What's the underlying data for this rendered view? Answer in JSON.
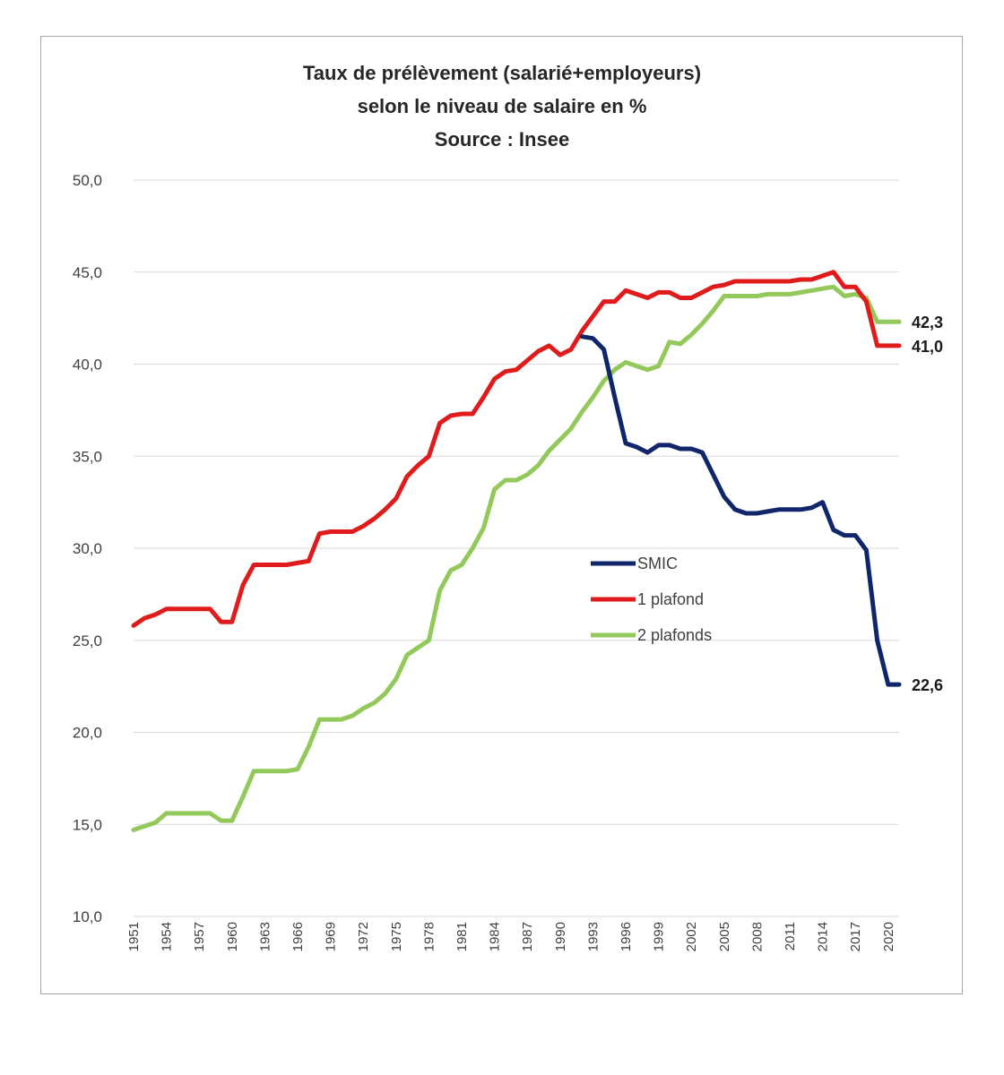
{
  "chart_data": {
    "type": "line",
    "title": [
      "Taux de prélèvement (salarié+employeurs)",
      "selon le niveau de salaire en %",
      "Source : Insee"
    ],
    "xlabel": "",
    "ylabel": "",
    "ylim": [
      10,
      50
    ],
    "yticks": [
      "10,0",
      "15,0",
      "20,0",
      "25,0",
      "30,0",
      "35,0",
      "40,0",
      "45,0",
      "50,0"
    ],
    "ytick_values": [
      10,
      15,
      20,
      25,
      30,
      35,
      40,
      45,
      50
    ],
    "xlim": [
      1951,
      2021
    ],
    "xticks": [
      "1951",
      "1954",
      "1957",
      "1960",
      "1963",
      "1966",
      "1969",
      "1972",
      "1975",
      "1978",
      "1981",
      "1984",
      "1987",
      "1990",
      "1993",
      "1996",
      "1999",
      "2002",
      "2005",
      "2008",
      "2011",
      "2014",
      "2017",
      "2020"
    ],
    "xtick_values": [
      1951,
      1954,
      1957,
      1960,
      1963,
      1966,
      1969,
      1972,
      1975,
      1978,
      1981,
      1984,
      1987,
      1990,
      1993,
      1996,
      1999,
      2002,
      2005,
      2008,
      2011,
      2014,
      2017,
      2020
    ],
    "grid": "horizontal",
    "legend_position": "center-right",
    "series": [
      {
        "name": "SMIC",
        "color": "#10266b",
        "x": [
          1992,
          1993,
          1994,
          1995,
          1996,
          1997,
          1998,
          1999,
          2000,
          2001,
          2002,
          2003,
          2004,
          2005,
          2006,
          2007,
          2008,
          2009,
          2010,
          2011,
          2012,
          2013,
          2014,
          2015,
          2016,
          2017,
          2018,
          2019,
          2020,
          2021
        ],
        "y": [
          41.5,
          41.4,
          40.8,
          38.2,
          35.7,
          35.5,
          35.2,
          35.6,
          35.6,
          35.4,
          35.4,
          35.2,
          34.0,
          32.8,
          32.1,
          31.9,
          31.9,
          32.0,
          32.1,
          32.1,
          32.1,
          32.2,
          32.5,
          31.0,
          30.7,
          30.7,
          29.9,
          25.0,
          22.6,
          22.6
        ],
        "end_label": "22,6"
      },
      {
        "name": "1 plafond",
        "color": "#e01b1b",
        "x": [
          1951,
          1952,
          1953,
          1954,
          1955,
          1956,
          1957,
          1958,
          1959,
          1960,
          1961,
          1962,
          1963,
          1964,
          1965,
          1966,
          1967,
          1968,
          1969,
          1970,
          1971,
          1972,
          1973,
          1974,
          1975,
          1976,
          1977,
          1978,
          1979,
          1980,
          1981,
          1982,
          1983,
          1984,
          1985,
          1986,
          1987,
          1988,
          1989,
          1990,
          1991,
          1992,
          1993,
          1994,
          1995,
          1996,
          1997,
          1998,
          1999,
          2000,
          2001,
          2002,
          2003,
          2004,
          2005,
          2006,
          2007,
          2008,
          2009,
          2010,
          2011,
          2012,
          2013,
          2014,
          2015,
          2016,
          2017,
          2018,
          2019,
          2020,
          2021
        ],
        "y": [
          25.8,
          26.2,
          26.4,
          26.7,
          26.7,
          26.7,
          26.7,
          26.7,
          26.0,
          26.0,
          28.0,
          29.1,
          29.1,
          29.1,
          29.1,
          29.2,
          29.3,
          30.8,
          30.9,
          30.9,
          30.9,
          31.2,
          31.6,
          32.1,
          32.7,
          33.9,
          34.5,
          35.0,
          36.8,
          37.2,
          37.3,
          37.3,
          38.2,
          39.2,
          39.6,
          39.7,
          40.2,
          40.7,
          41.0,
          40.5,
          40.8,
          41.8,
          42.6,
          43.4,
          43.4,
          44.0,
          43.8,
          43.6,
          43.9,
          43.9,
          43.6,
          43.6,
          43.9,
          44.2,
          44.3,
          44.5,
          44.5,
          44.5,
          44.5,
          44.5,
          44.5,
          44.6,
          44.6,
          44.8,
          45.0,
          44.2,
          44.2,
          43.4,
          41.0,
          41.0,
          41.0
        ],
        "end_label": "41,0"
      },
      {
        "name": "2 plafonds",
        "color": "#92c95a",
        "x": [
          1951,
          1952,
          1953,
          1954,
          1955,
          1956,
          1957,
          1958,
          1959,
          1960,
          1961,
          1962,
          1963,
          1964,
          1965,
          1966,
          1967,
          1968,
          1969,
          1970,
          1971,
          1972,
          1973,
          1974,
          1975,
          1976,
          1977,
          1978,
          1979,
          1980,
          1981,
          1982,
          1983,
          1984,
          1985,
          1986,
          1987,
          1988,
          1989,
          1990,
          1991,
          1992,
          1993,
          1994,
          1995,
          1996,
          1997,
          1998,
          1999,
          2000,
          2001,
          2002,
          2003,
          2004,
          2005,
          2006,
          2007,
          2008,
          2009,
          2010,
          2011,
          2012,
          2013,
          2014,
          2015,
          2016,
          2017,
          2018,
          2019,
          2020,
          2021
        ],
        "y": [
          14.7,
          14.9,
          15.1,
          15.6,
          15.6,
          15.6,
          15.6,
          15.6,
          15.2,
          15.2,
          16.5,
          17.9,
          17.9,
          17.9,
          17.9,
          18.0,
          19.2,
          20.7,
          20.7,
          20.7,
          20.9,
          21.3,
          21.6,
          22.1,
          22.9,
          24.2,
          24.6,
          25.0,
          27.7,
          28.8,
          29.1,
          30.0,
          31.1,
          33.2,
          33.7,
          33.7,
          34.0,
          34.5,
          35.3,
          35.9,
          36.5,
          37.4,
          38.2,
          39.1,
          39.7,
          40.1,
          39.9,
          39.7,
          39.9,
          41.2,
          41.1,
          41.6,
          42.2,
          42.9,
          43.7,
          43.7,
          43.7,
          43.7,
          43.8,
          43.8,
          43.8,
          43.9,
          44.0,
          44.1,
          44.2,
          43.7,
          43.8,
          43.6,
          42.3,
          42.3,
          42.3
        ],
        "end_label": "42,3"
      }
    ]
  }
}
